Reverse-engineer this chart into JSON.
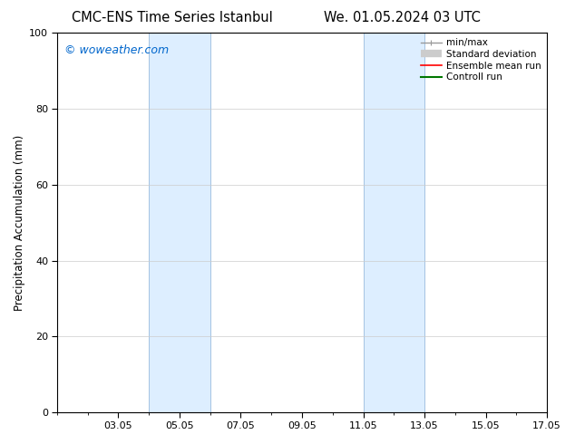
{
  "title_left": "CMC-ENS Time Series Istanbul",
  "title_right": "We. 01.05.2024 03 UTC",
  "ylabel": "Precipitation Accumulation (mm)",
  "watermark": "© woweather.com",
  "watermark_color": "#0066cc",
  "ylim": [
    0,
    100
  ],
  "yticks": [
    0,
    20,
    40,
    60,
    80,
    100
  ],
  "xlim": [
    1.0,
    17.0
  ],
  "xtick_positions": [
    3,
    5,
    7,
    9,
    11,
    13,
    15,
    17
  ],
  "xtick_labels": [
    "03.05",
    "05.05",
    "07.05",
    "09.05",
    "11.05",
    "13.05",
    "15.05",
    "17.05"
  ],
  "minor_xtick_positions": [
    1,
    2,
    3,
    4,
    5,
    6,
    7,
    8,
    9,
    10,
    11,
    12,
    13,
    14,
    15,
    16,
    17
  ],
  "shaded_bands": [
    {
      "start": 4.0,
      "end": 6.0
    },
    {
      "start": 11.0,
      "end": 13.0
    }
  ],
  "shaded_color": "#ddeeff",
  "shaded_edge_color": "#99bbdd",
  "legend_entries": [
    {
      "label": "min/max",
      "color": "#999999",
      "lw": 1.0,
      "type": "minmax"
    },
    {
      "label": "Standard deviation",
      "color": "#cccccc",
      "lw": 6.0,
      "type": "fill"
    },
    {
      "label": "Ensemble mean run",
      "color": "#ff0000",
      "lw": 1.2,
      "type": "line"
    },
    {
      "label": "Controll run",
      "color": "#007700",
      "lw": 1.5,
      "type": "line"
    }
  ],
  "background_color": "#ffffff",
  "grid_color": "#cccccc",
  "title_fontsize": 10.5,
  "tick_fontsize": 8,
  "ylabel_fontsize": 8.5,
  "watermark_fontsize": 9,
  "legend_fontsize": 7.5
}
